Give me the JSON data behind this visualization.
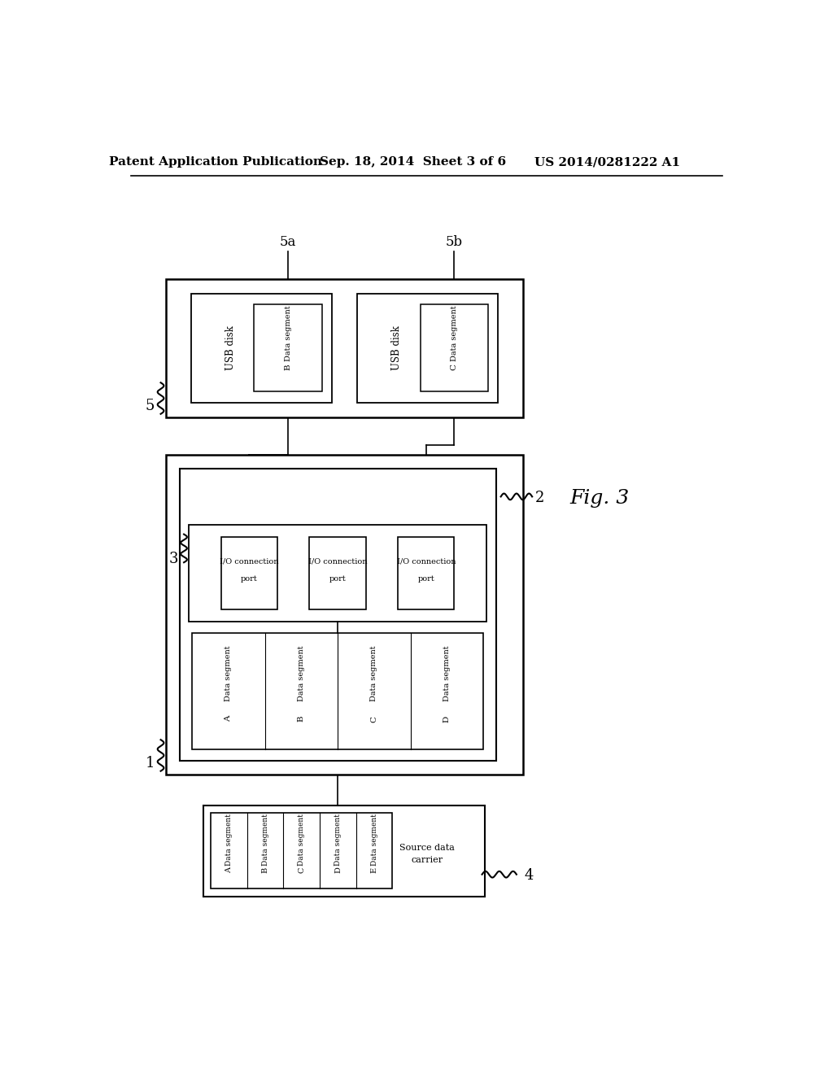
{
  "header_left": "Patent Application Publication",
  "header_center": "Sep. 18, 2014  Sheet 3 of 6",
  "header_right": "US 2014/0281222 A1",
  "bg_color": "#ffffff"
}
